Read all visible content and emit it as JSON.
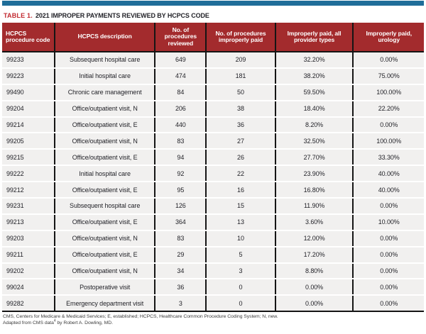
{
  "page": {
    "top_bar_color": "#1f6d99",
    "accent_red": "#a32b2d",
    "title_label": "TABLE 1.",
    "title_text": "2021 IMPROPER PAYMENTS REVIEWED BY HCPCS CODE"
  },
  "table": {
    "columns": [
      "HCPCS procedure code",
      "HCPCS description",
      "No. of procedures reviewed",
      "No. of procedures improperly paid",
      "Improperly paid, all provider types",
      "Improperly paid, urology"
    ],
    "rows": [
      [
        "99233",
        "Subsequent hospital care",
        "649",
        "209",
        "32.20%",
        "0.00%"
      ],
      [
        "99223",
        "Initial hospital care",
        "474",
        "181",
        "38.20%",
        "75.00%"
      ],
      [
        "99490",
        "Chronic care management",
        "84",
        "50",
        "59.50%",
        "100.00%"
      ],
      [
        "99204",
        "Office/outpatient visit, N",
        "206",
        "38",
        "18.40%",
        "22.20%"
      ],
      [
        "99214",
        "Office/outpatient visit, E",
        "440",
        "36",
        "8.20%",
        "0.00%"
      ],
      [
        "99205",
        "Office/outpatient visit, N",
        "83",
        "27",
        "32.50%",
        "100.00%"
      ],
      [
        "99215",
        "Office/outpatient visit, E",
        "94",
        "26",
        "27.70%",
        "33.30%"
      ],
      [
        "99222",
        "Initial hospital care",
        "92",
        "22",
        "23.90%",
        "40.00%"
      ],
      [
        "99212",
        "Office/outpatient visit, E",
        "95",
        "16",
        "16.80%",
        "40.00%"
      ],
      [
        "99231",
        "Subsequent hospital care",
        "126",
        "15",
        "11.90%",
        "0.00%"
      ],
      [
        "99213",
        "Office/outpatient visit, E",
        "364",
        "13",
        "3.60%",
        "10.00%"
      ],
      [
        "99203",
        "Office/outpatient visit, N",
        "83",
        "10",
        "12.00%",
        "0.00%"
      ],
      [
        "99211",
        "Office/outpatient visit, E",
        "29",
        "5",
        "17.20%",
        "0.00%"
      ],
      [
        "99202",
        "Office/outpatient visit, N",
        "34",
        "3",
        "8.80%",
        "0.00%"
      ],
      [
        "99024",
        "Postoperative visit",
        "36",
        "0",
        "0.00%",
        "0.00%"
      ],
      [
        "99282",
        "Emergency department visit",
        "3",
        "0",
        "0.00%",
        "0.00%"
      ]
    ]
  },
  "footnotes": {
    "line1": "CMS, Centers for Medicare & Medicaid Services; E, established; HCPCS, Healthcare Common Procedure Coding System; N, new.",
    "line2_pre": "Adapted from CMS data",
    "line2_sup": "4",
    "line2_post": " by Robert A. Dowling, MD."
  }
}
